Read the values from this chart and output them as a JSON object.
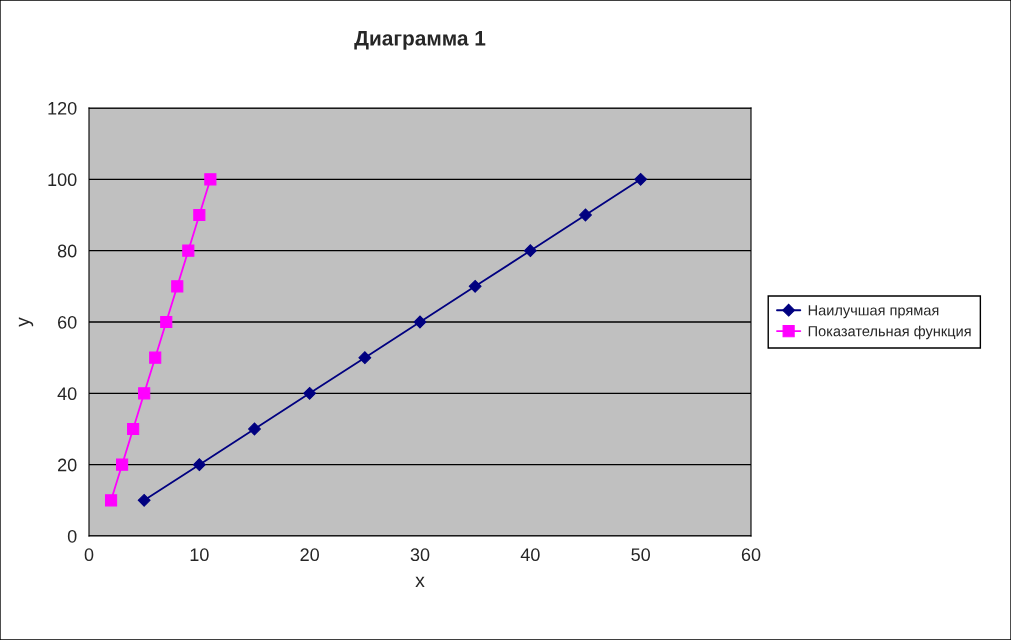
{
  "chart_data": {
    "type": "line",
    "title": "Диаграмма 1",
    "xlabel": "x",
    "ylabel": "y",
    "xlim": [
      0,
      60
    ],
    "xticks": [
      0,
      10,
      20,
      30,
      40,
      50,
      60
    ],
    "ylim": [
      0,
      120
    ],
    "yticks": [
      0,
      20,
      40,
      60,
      80,
      100,
      120
    ],
    "grid": "y",
    "legend": "right",
    "series": [
      {
        "name": "Наилучшая прямая",
        "color": "#000080",
        "marker": "diamond",
        "x": [
          5,
          10,
          15,
          20,
          25,
          30,
          35,
          40,
          45,
          50
        ],
        "values": [
          10,
          20,
          30,
          40,
          50,
          60,
          70,
          80,
          90,
          100
        ]
      },
      {
        "name": "Показательная функция",
        "color": "#ff00ff",
        "marker": "square",
        "x": [
          2,
          3,
          4,
          5,
          6,
          7,
          8,
          9,
          10,
          11
        ],
        "values": [
          10,
          20,
          30,
          40,
          50,
          60,
          70,
          80,
          90,
          100
        ]
      }
    ]
  }
}
